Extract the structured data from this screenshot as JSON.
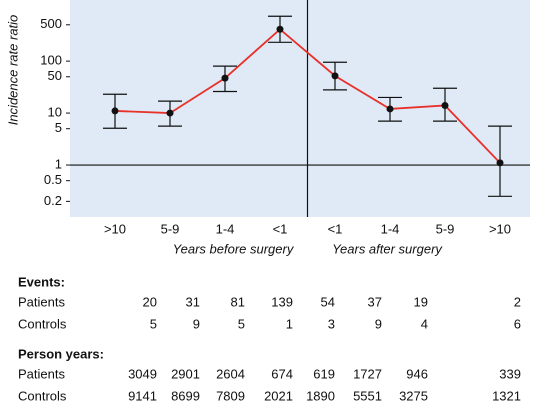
{
  "chart_data": {
    "type": "line",
    "y_label": "Incidence rate ratio",
    "categories": [
      ">10",
      "5-9",
      "1-4",
      "<1",
      "<1",
      "1-4",
      "5-9",
      ">10"
    ],
    "group_labels": [
      "Years before surgery",
      "Years after surgery"
    ],
    "values": [
      11,
      10,
      47,
      410,
      52,
      12,
      14,
      1.1
    ],
    "ci_low": [
      5.1,
      5.6,
      26,
      230,
      28,
      7,
      7,
      0.25
    ],
    "ci_high": [
      23,
      17,
      80,
      730,
      95,
      20,
      30,
      5.6
    ],
    "color": "#e8312a",
    "log_y": true,
    "ylim": [
      0.1,
      1500
    ],
    "yticks": [
      0.2,
      0.5,
      1,
      5,
      10,
      50,
      100,
      500
    ],
    "reference_line": 1
  },
  "table": {
    "sections": [
      {
        "title": "Events:",
        "rows": [
          {
            "label": "Patients",
            "values": [
              20,
              31,
              81,
              139,
              54,
              37,
              19,
              2
            ]
          },
          {
            "label": "Controls",
            "values": [
              5,
              9,
              5,
              1,
              3,
              9,
              4,
              6
            ]
          }
        ]
      },
      {
        "title": "Person years:",
        "rows": [
          {
            "label": "Patients",
            "values": [
              3049,
              2901,
              2604,
              674,
              619,
              1727,
              946,
              339
            ]
          },
          {
            "label": "Controls",
            "values": [
              9141,
              8699,
              7809,
              2021,
              1890,
              5551,
              3275,
              1321
            ]
          }
        ]
      }
    ]
  }
}
